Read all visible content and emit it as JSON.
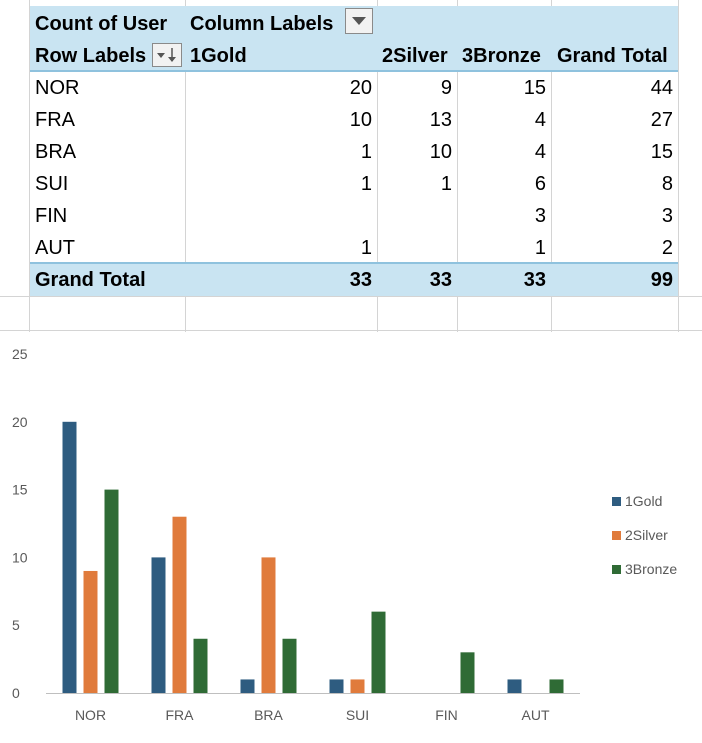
{
  "pivot": {
    "corner_label": "Count of User",
    "column_labels": "Column Labels",
    "row_labels": "Row Labels",
    "col_headers": [
      "1Gold",
      "2Silver",
      "3Bronze",
      "Grand Total"
    ],
    "rows": [
      {
        "label": "NOR",
        "values": [
          "20",
          "9",
          "15",
          "44"
        ]
      },
      {
        "label": "FRA",
        "values": [
          "10",
          "13",
          "4",
          "27"
        ]
      },
      {
        "label": "BRA",
        "values": [
          "1",
          "10",
          "4",
          "15"
        ]
      },
      {
        "label": "SUI",
        "values": [
          "1",
          "1",
          "6",
          "8"
        ]
      },
      {
        "label": "FIN",
        "values": [
          "",
          "",
          "3",
          "3"
        ]
      },
      {
        "label": "AUT",
        "values": [
          "1",
          "",
          "1",
          "2"
        ]
      }
    ],
    "grand_total": {
      "label": "Grand Total",
      "values": [
        "33",
        "33",
        "33",
        "99"
      ]
    },
    "header_color": "#c9e4f2"
  },
  "chart_data": {
    "type": "bar",
    "categories": [
      "NOR",
      "FRA",
      "BRA",
      "SUI",
      "FIN",
      "AUT"
    ],
    "series": [
      {
        "name": "1Gold",
        "values": [
          20,
          10,
          1,
          1,
          0,
          1
        ],
        "color": "#2e5c80"
      },
      {
        "name": "2Silver",
        "values": [
          9,
          13,
          10,
          1,
          0,
          0
        ],
        "color": "#e07b3c"
      },
      {
        "name": "3Bronze",
        "values": [
          15,
          4,
          4,
          6,
          3,
          1
        ],
        "color": "#2f6b35"
      }
    ],
    "yticks": [
      "0",
      "5",
      "10",
      "15",
      "20",
      "25"
    ],
    "ylim": [
      0,
      25
    ],
    "grid": false,
    "legend": "right"
  }
}
